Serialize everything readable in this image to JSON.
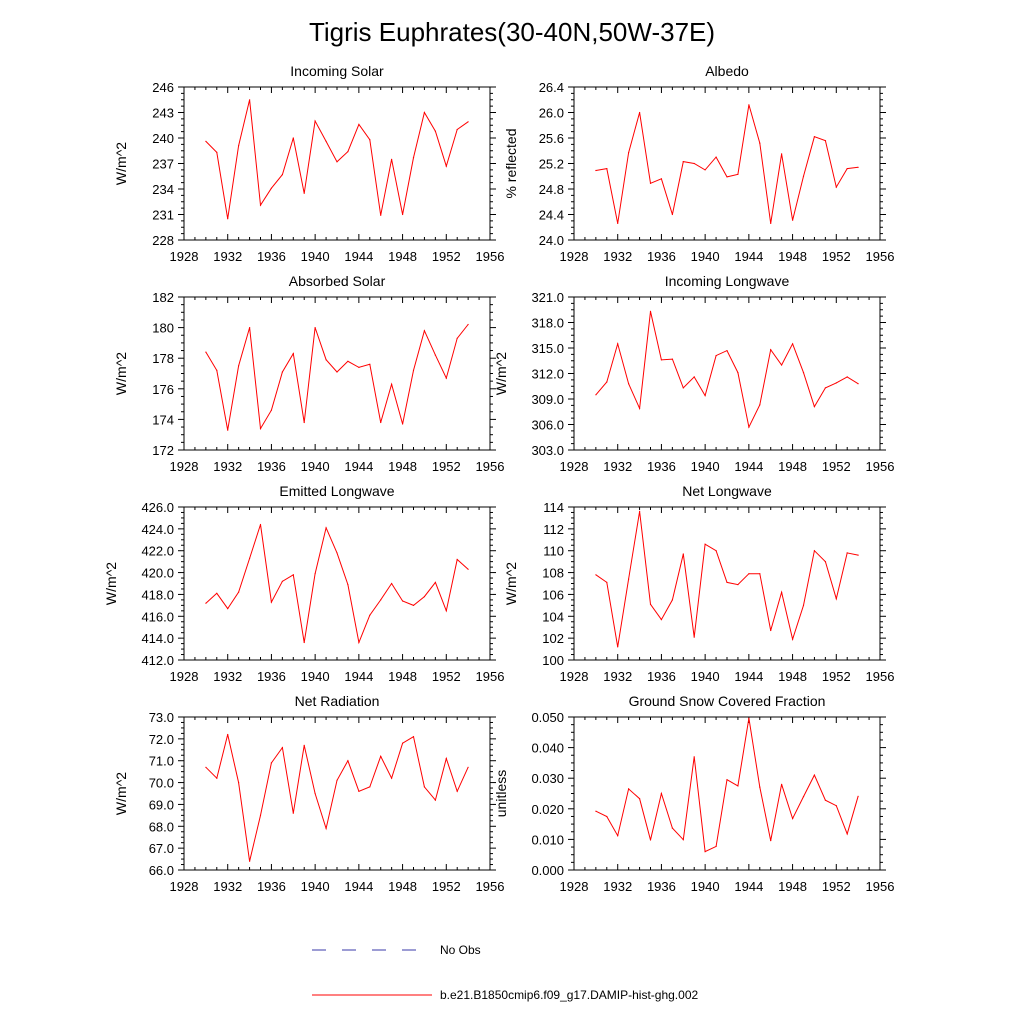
{
  "figure": {
    "title": "Tigris Euphrates(30-40N,50W-37E)",
    "series_color": "#ff0000",
    "noobs_color": "#3a3aa8"
  },
  "legend": {
    "items": [
      {
        "label": "No Obs",
        "style": "dashed",
        "color": "#3a3aa8"
      },
      {
        "label": "b.e21.B1850cmip6.f09_g17.DAMIP-hist-ghg.002",
        "style": "solid",
        "color": "#ff0000"
      }
    ]
  },
  "chart_data": [
    {
      "type": "line",
      "title": "Incoming Solar",
      "ylabel": "W/m^2",
      "xlim": [
        1928,
        1956
      ],
      "xticks": [
        1928,
        1932,
        1936,
        1940,
        1944,
        1948,
        1952,
        1956
      ],
      "ylim": [
        228,
        246
      ],
      "yticks": [
        "228",
        "231",
        "234",
        "237",
        "240",
        "243",
        "246"
      ],
      "series": [
        {
          "x": [
            1930,
            1931,
            1932,
            1933,
            1934,
            1935,
            1936,
            1937,
            1938,
            1939,
            1940,
            1941,
            1942,
            1943,
            1944,
            1945,
            1946,
            1947,
            1948,
            1949,
            1950,
            1951,
            1952,
            1953,
            1954
          ],
          "y": [
            239.6,
            238.3,
            230.5,
            239.1,
            244.5,
            232.1,
            234.1,
            235.7,
            240.0,
            233.5,
            242.0,
            239.6,
            237.2,
            238.4,
            241.6,
            239.8,
            230.9,
            237.5,
            231.0,
            237.7,
            243.0,
            240.8,
            236.7,
            241.0,
            241.9
          ]
        }
      ]
    },
    {
      "type": "line",
      "title": "Albedo",
      "ylabel": "% reflected",
      "xlim": [
        1928,
        1956
      ],
      "xticks": [
        1928,
        1932,
        1936,
        1940,
        1944,
        1948,
        1952,
        1956
      ],
      "ylim": [
        24.0,
        26.4
      ],
      "yticks": [
        "24.0",
        "24.4",
        "24.8",
        "25.2",
        "25.6",
        "26.0",
        "26.4"
      ],
      "series": [
        {
          "x": [
            1930,
            1931,
            1932,
            1933,
            1934,
            1935,
            1936,
            1937,
            1938,
            1939,
            1940,
            1941,
            1942,
            1943,
            1944,
            1945,
            1946,
            1947,
            1948,
            1949,
            1950,
            1951,
            1952,
            1953,
            1954
          ],
          "y": [
            25.09,
            25.12,
            24.26,
            25.37,
            26.0,
            24.89,
            24.96,
            24.4,
            25.23,
            25.2,
            25.1,
            25.3,
            24.99,
            25.03,
            26.12,
            25.52,
            24.26,
            25.35,
            24.31,
            25.0,
            25.62,
            25.56,
            24.83,
            25.12,
            25.14
          ]
        }
      ]
    },
    {
      "type": "line",
      "title": "Absorbed Solar",
      "ylabel": "W/m^2",
      "xlim": [
        1928,
        1956
      ],
      "xticks": [
        1928,
        1932,
        1936,
        1940,
        1944,
        1948,
        1952,
        1956
      ],
      "ylim": [
        172,
        182
      ],
      "yticks": [
        "172",
        "174",
        "176",
        "178",
        "180",
        "182"
      ],
      "series": [
        {
          "x": [
            1930,
            1931,
            1932,
            1933,
            1934,
            1935,
            1936,
            1937,
            1938,
            1939,
            1940,
            1941,
            1942,
            1943,
            1944,
            1945,
            1946,
            1947,
            1948,
            1949,
            1950,
            1951,
            1952,
            1953,
            1954
          ],
          "y": [
            178.4,
            177.2,
            173.3,
            177.5,
            180.0,
            173.4,
            174.6,
            177.1,
            178.3,
            173.8,
            180.0,
            177.9,
            177.1,
            177.8,
            177.4,
            177.6,
            173.8,
            176.3,
            173.7,
            177.2,
            179.8,
            178.2,
            176.7,
            179.3,
            180.2
          ]
        }
      ]
    },
    {
      "type": "line",
      "title": "Incoming Longwave",
      "ylabel": "W/m^2",
      "xlim": [
        1928,
        1956
      ],
      "xticks": [
        1928,
        1932,
        1936,
        1940,
        1944,
        1948,
        1952,
        1956
      ],
      "ylim": [
        303.0,
        321.0
      ],
      "yticks": [
        "303.0",
        "306.0",
        "309.0",
        "312.0",
        "315.0",
        "318.0",
        "321.0"
      ],
      "series": [
        {
          "x": [
            1930,
            1931,
            1932,
            1933,
            1934,
            1935,
            1936,
            1937,
            1938,
            1939,
            1940,
            1941,
            1942,
            1943,
            1944,
            1945,
            1946,
            1947,
            1948,
            1949,
            1950,
            1951,
            1952,
            1953,
            1954
          ],
          "y": [
            309.5,
            311.0,
            315.5,
            310.8,
            307.9,
            319.3,
            313.6,
            313.7,
            310.3,
            311.6,
            309.4,
            314.1,
            314.7,
            312.1,
            305.7,
            308.3,
            314.8,
            313.0,
            315.5,
            312.1,
            308.1,
            310.3,
            310.9,
            311.6,
            310.8
          ]
        }
      ]
    },
    {
      "type": "line",
      "title": "Emitted Longwave",
      "ylabel": "W/m^2",
      "xlim": [
        1928,
        1956
      ],
      "xticks": [
        1928,
        1932,
        1936,
        1940,
        1944,
        1948,
        1952,
        1956
      ],
      "ylim": [
        412.0,
        426.0
      ],
      "yticks": [
        "412.0",
        "414.0",
        "416.0",
        "418.0",
        "420.0",
        "422.0",
        "424.0",
        "426.0"
      ],
      "series": [
        {
          "x": [
            1930,
            1931,
            1932,
            1933,
            1934,
            1935,
            1936,
            1937,
            1938,
            1939,
            1940,
            1941,
            1942,
            1943,
            1944,
            1945,
            1946,
            1947,
            1948,
            1949,
            1950,
            1951,
            1952,
            1953,
            1954
          ],
          "y": [
            417.2,
            418.1,
            416.7,
            418.2,
            421.3,
            424.4,
            417.3,
            419.2,
            419.8,
            413.6,
            419.9,
            424.1,
            421.8,
            418.9,
            413.6,
            416.1,
            417.5,
            419.0,
            417.4,
            417.0,
            417.8,
            419.1,
            416.5,
            421.2,
            420.3
          ]
        }
      ]
    },
    {
      "type": "line",
      "title": "Net Longwave",
      "ylabel": "W/m^2",
      "xlim": [
        1928,
        1956
      ],
      "xticks": [
        1928,
        1932,
        1936,
        1940,
        1944,
        1948,
        1952,
        1956
      ],
      "ylim": [
        100,
        114
      ],
      "yticks": [
        "100",
        "102",
        "104",
        "106",
        "108",
        "110",
        "112",
        "114"
      ],
      "series": [
        {
          "x": [
            1930,
            1931,
            1932,
            1933,
            1934,
            1935,
            1936,
            1937,
            1938,
            1939,
            1940,
            1941,
            1942,
            1943,
            1944,
            1945,
            1946,
            1947,
            1948,
            1949,
            1950,
            1951,
            1952,
            1953,
            1954
          ],
          "y": [
            107.8,
            107.1,
            101.2,
            107.4,
            113.6,
            105.1,
            103.7,
            105.5,
            109.7,
            102.1,
            110.6,
            110.0,
            107.1,
            106.9,
            107.9,
            107.9,
            102.7,
            106.2,
            101.9,
            105.0,
            110.0,
            109.0,
            105.6,
            109.8,
            109.6
          ]
        }
      ]
    },
    {
      "type": "line",
      "title": "Net Radiation",
      "ylabel": "W/m^2",
      "xlim": [
        1928,
        1956
      ],
      "xticks": [
        1928,
        1932,
        1936,
        1940,
        1944,
        1948,
        1952,
        1956
      ],
      "ylim": [
        66.0,
        73.0
      ],
      "yticks": [
        "66.0",
        "67.0",
        "68.0",
        "69.0",
        "70.0",
        "71.0",
        "72.0",
        "73.0"
      ],
      "series": [
        {
          "x": [
            1930,
            1931,
            1932,
            1933,
            1934,
            1935,
            1936,
            1937,
            1938,
            1939,
            1940,
            1941,
            1942,
            1943,
            1944,
            1945,
            1946,
            1947,
            1948,
            1949,
            1950,
            1951,
            1952,
            1953,
            1954
          ],
          "y": [
            70.7,
            70.2,
            72.2,
            70.0,
            66.4,
            68.5,
            70.9,
            71.6,
            68.6,
            71.7,
            69.5,
            67.9,
            70.1,
            71.0,
            69.6,
            69.8,
            71.2,
            70.2,
            71.8,
            72.1,
            69.8,
            69.2,
            71.1,
            69.6,
            70.7
          ]
        }
      ]
    },
    {
      "type": "line",
      "title": "Ground Snow Covered Fraction",
      "ylabel": "unitless",
      "xlim": [
        1928,
        1956
      ],
      "xticks": [
        1928,
        1932,
        1936,
        1940,
        1944,
        1948,
        1952,
        1956
      ],
      "ylim": [
        0.0,
        0.05
      ],
      "yticks": [
        "0.000",
        "0.010",
        "0.020",
        "0.030",
        "0.040",
        "0.050"
      ],
      "series": [
        {
          "x": [
            1930,
            1931,
            1932,
            1933,
            1934,
            1935,
            1936,
            1937,
            1938,
            1939,
            1940,
            1941,
            1942,
            1943,
            1944,
            1945,
            1946,
            1947,
            1948,
            1949,
            1950,
            1951,
            1952,
            1953,
            1954
          ],
          "y": [
            0.0192,
            0.0175,
            0.0112,
            0.0265,
            0.0233,
            0.0098,
            0.025,
            0.0137,
            0.0099,
            0.037,
            0.006,
            0.0077,
            0.0295,
            0.0275,
            0.0496,
            0.0271,
            0.0096,
            0.028,
            0.0168,
            0.024,
            0.031,
            0.0228,
            0.021,
            0.0118,
            0.0241
          ]
        }
      ]
    }
  ]
}
